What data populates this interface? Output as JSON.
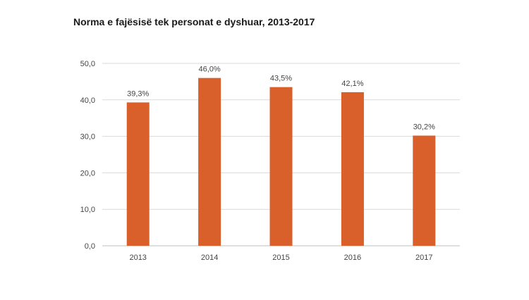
{
  "chart_data": {
    "type": "bar",
    "title": "Norma e fajësisë tek personat e dyshuar, 2013-2017",
    "categories": [
      "2013",
      "2014",
      "2015",
      "2016",
      "2017"
    ],
    "values": [
      39.3,
      46.0,
      43.5,
      42.1,
      30.2
    ],
    "data_labels": [
      "39,3%",
      "46,0%",
      "43,5%",
      "42,1%",
      "30,2%"
    ],
    "yticks": [
      "0,0",
      "10,0",
      "20,0",
      "30,0",
      "40,0",
      "50,0"
    ],
    "ylim": [
      0,
      50
    ],
    "grid": true,
    "xlabel": "",
    "ylabel": "",
    "bar_color": "#d95f2b",
    "grid_color": "#d9d9d9"
  }
}
